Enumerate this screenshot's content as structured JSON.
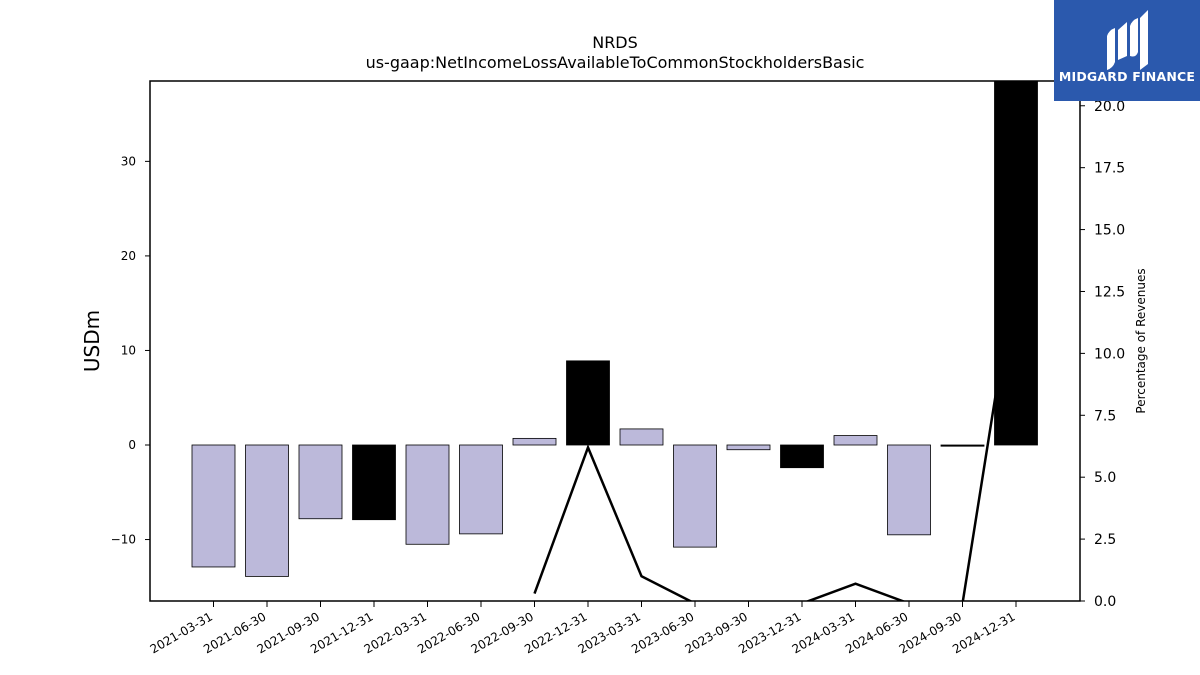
{
  "chart_data": {
    "type": "bar",
    "title": "NRDS",
    "subtitle": "us-gaap:NetIncomeLossAvailableToCommonStockholdersBasic",
    "ylabel": "USDm",
    "ylabel_right": "Percentage of Revenues",
    "categories": [
      "2021-03-31",
      "2021-06-30",
      "2021-09-30",
      "2021-12-31",
      "2022-03-31",
      "2022-06-30",
      "2022-09-30",
      "2022-12-31",
      "2023-03-31",
      "2023-06-30",
      "2023-09-30",
      "2023-12-31",
      "2024-03-31",
      "2024-06-30",
      "2024-09-30",
      "2024-12-31"
    ],
    "series": [
      {
        "values": [
          -12.9,
          -13.9,
          -7.8,
          -7.9,
          -10.5,
          -9.4,
          0.7,
          8.9,
          1.7,
          -10.8,
          -0.5,
          -2.4,
          1.0,
          -9.5,
          0.0,
          38.5
        ],
        "colors": [
          "#bcb9da",
          "#bcb9da",
          "#bcb9da",
          "#000000",
          "#bcb9da",
          "#bcb9da",
          "#bcb9da",
          "#000000",
          "#bcb9da",
          "#bcb9da",
          "#bcb9da",
          "#000000",
          "#bcb9da",
          "#bcb9da",
          "#000000",
          "#000000"
        ]
      },
      {
        "axis": "right",
        "type": "line",
        "values": [
          null,
          null,
          null,
          null,
          null,
          null,
          0.3,
          6.2,
          1.0,
          -0.1,
          null,
          -0.1,
          0.7,
          -0.1,
          -0.1,
          13.5
        ]
      }
    ],
    "ylim": [
      -16.5,
      38.5
    ],
    "yticks": [
      -10,
      0,
      10,
      20,
      30
    ],
    "ytick_labels": [
      "−10",
      "0",
      "10",
      "20",
      "30"
    ],
    "ylim_right": [
      0,
      21.0
    ],
    "yticks_right": [
      "0.0",
      "2.5",
      "5.0",
      "7.5",
      "10.0",
      "12.5",
      "15.0",
      "17.5",
      "20.0"
    ],
    "grid": false,
    "colors": {
      "bar_light": "#bcb9da",
      "bar_dark": "#000000",
      "line": "#000000"
    }
  },
  "logo": {
    "text": "MIDGARD FINANCE",
    "bg": "#2b59ad",
    "icon": "midgard-logo-icon"
  }
}
